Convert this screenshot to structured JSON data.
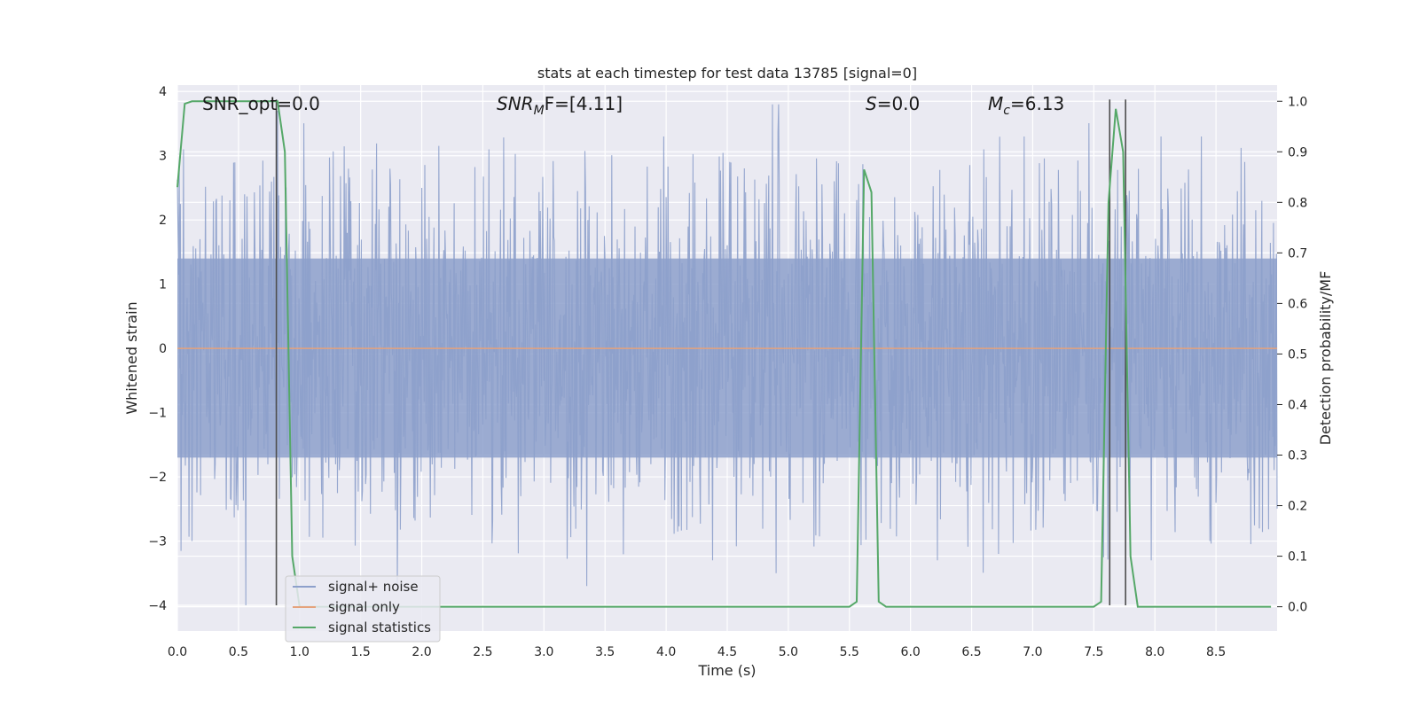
{
  "chart_data": {
    "type": "line",
    "title": "stats at each timestep for test data 13785 [signal=0]",
    "xlabel": "Time (s)",
    "ylabel": "Whitened strain",
    "y2label": "Detection probability/MF",
    "xlim": [
      0.0,
      9.0
    ],
    "ylim": [
      -4.4,
      4.1
    ],
    "y2lim": [
      -0.048,
      1.032
    ],
    "x_ticks": [
      "0.0",
      "0.5",
      "1.0",
      "1.5",
      "2.0",
      "2.5",
      "3.0",
      "3.5",
      "4.0",
      "4.5",
      "5.0",
      "5.5",
      "6.0",
      "6.5",
      "7.0",
      "7.5",
      "8.0",
      "8.5"
    ],
    "y_ticks": [
      "4",
      "3",
      "2",
      "1",
      "0",
      "−1",
      "−2",
      "−3",
      "−4"
    ],
    "y2_ticks": [
      "1.0",
      "0.9",
      "0.8",
      "0.7",
      "0.6",
      "0.5",
      "0.4",
      "0.3",
      "0.2",
      "0.1",
      "0.0"
    ],
    "grid": true,
    "legend_position": "bottom-left",
    "annotations": {
      "snr_opt": "SNR_opt=0.0",
      "snr_mf_label": "SNR",
      "snr_mf_sub": "M",
      "snr_mf_rest": "F=[4.11]",
      "s_label": "S",
      "s_value": "=0.0",
      "mc_label": "M",
      "mc_sub": "c",
      "mc_value": "=6.13"
    },
    "series": [
      {
        "name": "signal+ noise",
        "color": "#8da0cb",
        "axis": "left",
        "style": "noise band",
        "band_core": [
          -1.7,
          1.4
        ],
        "peaks": [
          [
            0.05,
            3.1
          ],
          [
            0.12,
            -3.0
          ],
          [
            0.55,
            2.4
          ],
          [
            0.56,
            -4.0
          ],
          [
            0.82,
            3.7
          ],
          [
            1.8,
            -3.7
          ],
          [
            2.0,
            2.5
          ],
          [
            2.55,
            3.1
          ],
          [
            3.35,
            -3.7
          ],
          [
            3.98,
            3.3
          ],
          [
            4.38,
            -3.3
          ],
          [
            4.87,
            3.8
          ],
          [
            4.92,
            3.8
          ],
          [
            4.9,
            -3.5
          ],
          [
            6.22,
            -3.3
          ],
          [
            6.6,
            3.1
          ],
          [
            6.72,
            -3.2
          ],
          [
            6.93,
            3.3
          ],
          [
            7.97,
            -3.3
          ],
          [
            8.05,
            3.3
          ],
          [
            8.38,
            3.3
          ],
          [
            8.45,
            -3.0
          ]
        ]
      },
      {
        "name": "signal only",
        "color": "#e5a27c",
        "axis": "left",
        "x": [
          0.0,
          9.0
        ],
        "y": [
          0.0,
          0.0
        ]
      },
      {
        "name": "signal statistics",
        "color": "#55a868",
        "axis": "right",
        "x": [
          0.0,
          0.06,
          0.12,
          0.2,
          0.3,
          0.4,
          0.5,
          0.6,
          0.7,
          0.8,
          0.82,
          0.88,
          0.94,
          1.0,
          1.1,
          2.0,
          3.0,
          4.0,
          5.0,
          5.5,
          5.56,
          5.62,
          5.68,
          5.74,
          5.8,
          6.0,
          7.0,
          7.5,
          7.56,
          7.62,
          7.68,
          7.74,
          7.8,
          7.86,
          7.92,
          8.0,
          8.5,
          8.95
        ],
        "y": [
          0.83,
          0.995,
          1.0,
          1.0,
          1.0,
          1.0,
          1.0,
          1.0,
          1.0,
          1.0,
          1.0,
          0.9,
          0.1,
          0.0,
          0.0,
          0.0,
          0.0,
          0.0,
          0.0,
          0.0,
          0.01,
          0.865,
          0.82,
          0.01,
          0.0,
          0.0,
          0.0,
          0.0,
          0.01,
          0.8,
          0.985,
          0.9,
          0.1,
          0.0,
          0.0,
          0.0,
          0.0,
          0.0
        ]
      }
    ],
    "markers": {
      "color": "#4d4d4d",
      "x": [
        0.81,
        7.63,
        7.76
      ]
    }
  },
  "legend": [
    {
      "label": "signal+ noise",
      "color": "#8da0cb"
    },
    {
      "label": "signal only",
      "color": "#e5a27c"
    },
    {
      "label": "signal statistics",
      "color": "#55a868"
    }
  ]
}
